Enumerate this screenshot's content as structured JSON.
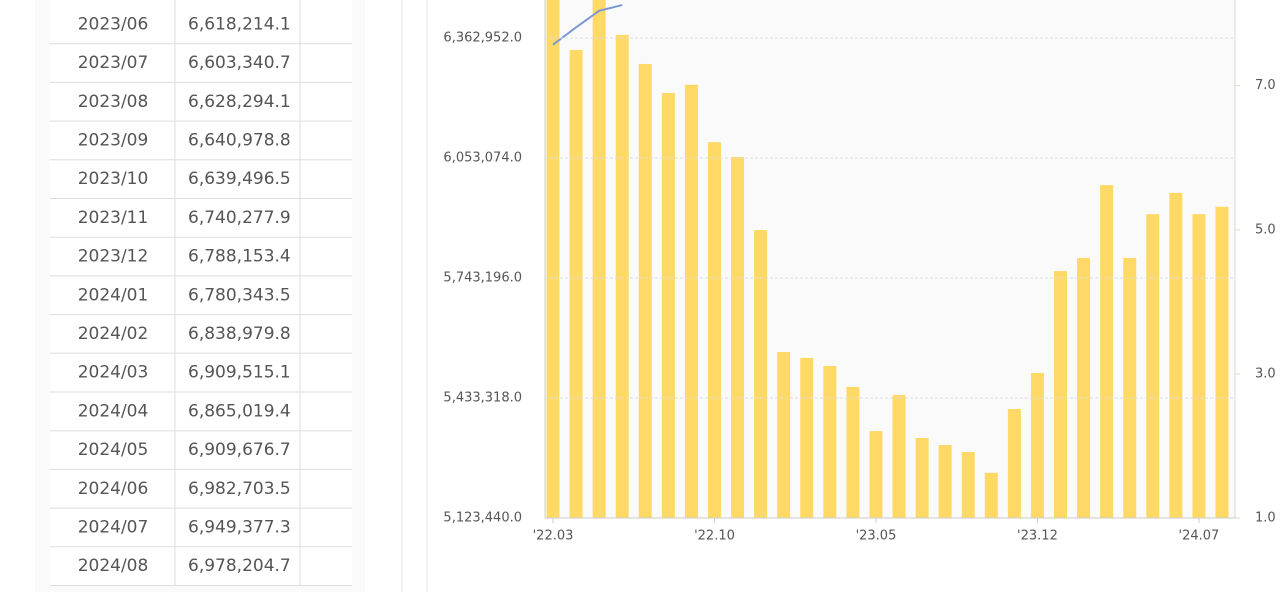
{
  "table": {
    "rows": [
      [
        "2023/06",
        "6,618,214.1"
      ],
      [
        "2023/07",
        "6,603,340.7"
      ],
      [
        "2023/08",
        "6,628,294.1"
      ],
      [
        "2023/09",
        "6,640,978.8"
      ],
      [
        "2023/10",
        "6,639,496.5"
      ],
      [
        "2023/11",
        "6,740,277.9"
      ],
      [
        "2023/12",
        "6,788,153.4"
      ],
      [
        "2024/01",
        "6,780,343.5"
      ],
      [
        "2024/02",
        "6,838,979.8"
      ],
      [
        "2024/03",
        "6,909,515.1"
      ],
      [
        "2024/04",
        "6,865,019.4"
      ],
      [
        "2024/05",
        "6,909,676.7"
      ],
      [
        "2024/06",
        "6,982,703.5"
      ],
      [
        "2024/07",
        "6,949,377.3"
      ],
      [
        "2024/08",
        "6,978,204.7"
      ]
    ]
  },
  "chart_data": {
    "type": "bar-line",
    "categories": [
      "'22.03",
      null,
      null,
      null,
      null,
      null,
      null,
      "'22.10",
      null,
      null,
      null,
      null,
      null,
      null,
      "'23.05",
      null,
      null,
      null,
      null,
      null,
      null,
      "'23.12",
      null,
      null,
      null,
      null,
      null,
      null,
      "'24.07",
      null
    ],
    "series": [
      {
        "color": "#ffd966",
        "values": [
          6500000,
          6332000,
          6480000,
          6371000,
          6296000,
          6221000,
          6242000,
          6094000,
          6056000,
          5867000,
          5552000,
          5537000,
          5516000,
          5462000,
          5348000,
          5441000,
          5330000,
          5312000,
          5294000,
          5240000,
          5405000,
          5498000,
          5761000,
          5795000,
          5983000,
          5795000,
          5908000,
          5963000,
          5908000,
          5927000
        ]
      },
      {
        "color": "#7b96d4",
        "axis": "y2",
        "values": [
          7.57,
          7.81,
          8.04,
          8.12,
          null,
          null,
          null,
          null,
          null,
          null,
          null,
          null,
          null,
          null,
          null,
          null,
          null,
          null,
          null,
          null,
          null,
          null,
          null,
          null,
          null,
          null,
          null,
          null,
          null,
          null
        ]
      }
    ],
    "ylim": [
      5123440,
      6461080
    ],
    "yticks": [
      {
        "value": 5123440,
        "label": "5,123,440.0"
      },
      {
        "value": 5433318,
        "label": "5,433,318.0"
      },
      {
        "value": 5743196,
        "label": "5,743,196.0"
      },
      {
        "value": 6053074,
        "label": "6,053,074.0"
      },
      {
        "value": 6362952,
        "label": "6,362,952.0"
      }
    ],
    "y2lim": [
      1,
      8.19
    ],
    "y2ticks": [
      {
        "value": 1,
        "label": "1.0"
      },
      {
        "value": 3,
        "label": "3.0"
      },
      {
        "value": 5,
        "label": "5.0"
      },
      {
        "value": 7,
        "label": "7.0"
      }
    ],
    "grid": true
  }
}
